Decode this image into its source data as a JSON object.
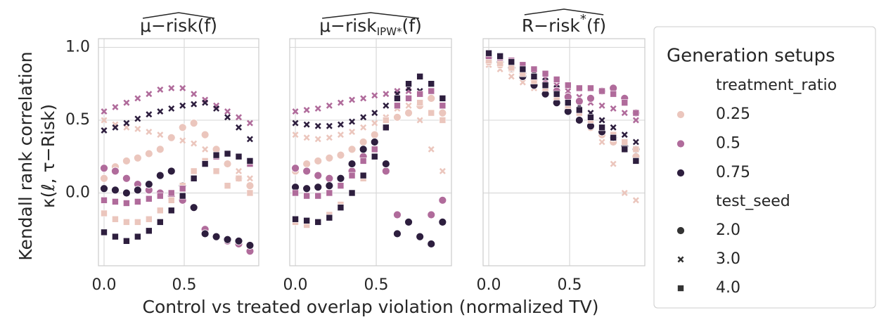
{
  "chart_data": [
    {
      "type": "scatter",
      "title": [
        {
          "text": "μ−risk"
        },
        {
          "text": "(f)"
        }
      ],
      "xlim": [
        -0.035,
        0.965
      ],
      "ylim": [
        -0.5,
        1.06
      ],
      "xticks": [
        {
          "value": 0,
          "label": "0.0"
        },
        {
          "value": 0.5,
          "label": "0.5"
        }
      ],
      "yticks": [
        {
          "value": 0,
          "label": "0.0"
        },
        {
          "value": 0.5,
          "label": "0.5"
        },
        {
          "value": 1,
          "label": "1.0"
        }
      ],
      "show_ytick_labels": true,
      "grid": true,
      "x": [
        0,
        0.07,
        0.14,
        0.21,
        0.28,
        0.35,
        0.42,
        0.49,
        0.56,
        0.63,
        0.7,
        0.77,
        0.84,
        0.91
      ],
      "series": [
        {
          "hue": 0,
          "style": 1,
          "values": [
            0.5,
            0.47,
            0.45,
            0.44,
            0.42,
            0.4,
            0.38,
            0.36,
            0.34,
            0.3,
            0.25,
            0.2,
            0.15,
            0.1
          ]
        },
        {
          "hue": 1,
          "style": 1,
          "values": [
            0.56,
            0.59,
            0.62,
            0.65,
            0.68,
            0.71,
            0.72,
            0.72,
            0.68,
            0.64,
            0.6,
            0.56,
            0.52,
            0.48
          ]
        },
        {
          "hue": 2,
          "style": 1,
          "values": [
            0.43,
            0.45,
            0.48,
            0.51,
            0.54,
            0.56,
            0.58,
            0.6,
            0.61,
            0.62,
            0.58,
            0.52,
            0.45,
            0.37
          ]
        },
        {
          "hue": 0,
          "style": 0,
          "values": [
            0.1,
            0.18,
            0.22,
            0.24,
            0.27,
            0.3,
            0.38,
            0.45,
            0.48,
            0.4,
            0.3,
            0.2,
            0.1,
            0.05
          ]
        },
        {
          "hue": 1,
          "style": 0,
          "values": [
            0.17,
            0.15,
            0.1,
            0.06,
            0.02,
            0.0,
            -0.02,
            -0.05,
            -0.1,
            -0.25,
            -0.3,
            -0.33,
            -0.35,
            -0.4
          ]
        },
        {
          "hue": 2,
          "style": 0,
          "values": [
            0.03,
            0.02,
            0.0,
            0.02,
            0.06,
            0.12,
            0.15,
            0.05,
            -0.1,
            -0.28,
            -0.3,
            -0.32,
            -0.33,
            -0.36
          ]
        },
        {
          "hue": 0,
          "style": 2,
          "values": [
            -0.14,
            -0.18,
            -0.2,
            -0.2,
            -0.18,
            -0.12,
            -0.05,
            0.05,
            0.15,
            0.22,
            0.15,
            0.05,
            0.1,
            0.0
          ]
        },
        {
          "hue": 1,
          "style": 2,
          "values": [
            -0.05,
            -0.06,
            -0.07,
            -0.06,
            -0.04,
            -0.02,
            0.0,
            0.03,
            0.1,
            0.2,
            0.25,
            0.27,
            0.25,
            0.2
          ]
        },
        {
          "hue": 2,
          "style": 2,
          "values": [
            -0.27,
            -0.3,
            -0.33,
            -0.3,
            -0.26,
            -0.2,
            -0.12,
            -0.02,
            0.1,
            0.2,
            0.26,
            0.27,
            0.25,
            0.22
          ]
        }
      ]
    },
    {
      "type": "scatter",
      "title": [
        {
          "text": "μ−risk"
        },
        {
          "text": "IPW*",
          "shift": "sub"
        },
        {
          "text": "(f)"
        }
      ],
      "xlim": [
        -0.035,
        0.965
      ],
      "ylim": [
        -0.5,
        1.06
      ],
      "xticks": [
        {
          "value": 0,
          "label": "0.0"
        },
        {
          "value": 0.5,
          "label": "0.5"
        }
      ],
      "yticks": [
        {
          "value": 0,
          "label": "0.0"
        },
        {
          "value": 0.5,
          "label": "0.5"
        },
        {
          "value": 1,
          "label": "1.0"
        }
      ],
      "show_ytick_labels": false,
      "grid": true,
      "x": [
        0,
        0.07,
        0.14,
        0.21,
        0.28,
        0.35,
        0.42,
        0.49,
        0.56,
        0.63,
        0.7,
        0.77,
        0.84,
        0.91
      ],
      "series": [
        {
          "hue": 0,
          "style": 1,
          "values": [
            0.4,
            0.38,
            0.37,
            0.38,
            0.4,
            0.42,
            0.45,
            0.48,
            0.52,
            0.58,
            0.6,
            0.5,
            0.3,
            0.15
          ]
        },
        {
          "hue": 1,
          "style": 1,
          "values": [
            0.56,
            0.57,
            0.58,
            0.6,
            0.62,
            0.64,
            0.65,
            0.67,
            0.68,
            0.7,
            0.7,
            0.68,
            0.65,
            0.6
          ]
        },
        {
          "hue": 2,
          "style": 1,
          "values": [
            0.48,
            0.47,
            0.46,
            0.46,
            0.47,
            0.49,
            0.52,
            0.55,
            0.6,
            0.68,
            0.72,
            0.7,
            0.65,
            0.6
          ]
        },
        {
          "hue": 0,
          "style": 0,
          "values": [
            0.15,
            0.2,
            0.22,
            0.24,
            0.26,
            0.3,
            0.35,
            0.4,
            0.45,
            0.52,
            0.55,
            0.6,
            0.65,
            0.55
          ]
        },
        {
          "hue": 1,
          "style": 0,
          "values": [
            0.17,
            0.15,
            0.12,
            0.1,
            0.1,
            0.15,
            0.25,
            0.35,
            0.15,
            -0.15,
            -0.2,
            -0.3,
            -0.15,
            -0.05
          ]
        },
        {
          "hue": 2,
          "style": 0,
          "values": [
            0.04,
            0.03,
            0.04,
            0.05,
            0.1,
            0.2,
            0.3,
            0.35,
            0.2,
            -0.28,
            -0.2,
            -0.3,
            -0.35,
            -0.2
          ]
        },
        {
          "hue": 0,
          "style": 2,
          "values": [
            -0.2,
            -0.22,
            -0.2,
            -0.15,
            -0.08,
            0.0,
            0.1,
            0.25,
            0.5,
            0.6,
            0.65,
            0.62,
            0.55,
            0.5
          ]
        },
        {
          "hue": 1,
          "style": 2,
          "values": [
            0.0,
            -0.02,
            -0.02,
            0.0,
            0.05,
            0.12,
            0.22,
            0.3,
            0.45,
            0.6,
            0.65,
            0.68,
            0.7,
            0.6
          ]
        },
        {
          "hue": 2,
          "style": 2,
          "values": [
            -0.18,
            -0.19,
            -0.2,
            -0.17,
            -0.1,
            0.0,
            0.12,
            0.25,
            0.45,
            0.65,
            0.75,
            0.8,
            0.75,
            0.65
          ]
        }
      ]
    },
    {
      "type": "scatter",
      "title": [
        {
          "text": "R−risk"
        },
        {
          "text": "*",
          "shift": "super"
        },
        {
          "text": "(f)"
        }
      ],
      "xlim": [
        -0.035,
        0.965
      ],
      "ylim": [
        -0.5,
        1.06
      ],
      "xticks": [
        {
          "value": 0,
          "label": "0.0"
        },
        {
          "value": 0.5,
          "label": "0.5"
        }
      ],
      "yticks": [
        {
          "value": 0,
          "label": "0.0"
        },
        {
          "value": 0.5,
          "label": "0.5"
        },
        {
          "value": 1,
          "label": "1.0"
        }
      ],
      "show_ytick_labels": false,
      "grid": true,
      "x": [
        0,
        0.07,
        0.14,
        0.21,
        0.28,
        0.35,
        0.42,
        0.49,
        0.56,
        0.63,
        0.7,
        0.77,
        0.84,
        0.91
      ],
      "series": [
        {
          "hue": 0,
          "style": 1,
          "values": [
            0.88,
            0.85,
            0.8,
            0.76,
            0.72,
            0.68,
            0.62,
            0.58,
            0.52,
            0.45,
            0.35,
            0.2,
            0.0,
            -0.05
          ]
        },
        {
          "hue": 1,
          "style": 1,
          "values": [
            0.93,
            0.92,
            0.9,
            0.87,
            0.83,
            0.79,
            0.74,
            0.7,
            0.66,
            0.62,
            0.6,
            0.58,
            0.55,
            0.5
          ]
        },
        {
          "hue": 2,
          "style": 1,
          "values": [
            0.95,
            0.93,
            0.9,
            0.86,
            0.82,
            0.77,
            0.72,
            0.66,
            0.6,
            0.55,
            0.5,
            0.45,
            0.4,
            0.35
          ]
        },
        {
          "hue": 0,
          "style": 0,
          "values": [
            0.9,
            0.88,
            0.85,
            0.8,
            0.75,
            0.7,
            0.64,
            0.58,
            0.5,
            0.45,
            0.4,
            0.35,
            0.3,
            0.25
          ]
        },
        {
          "hue": 1,
          "style": 0,
          "values": [
            0.92,
            0.9,
            0.86,
            0.82,
            0.78,
            0.75,
            0.7,
            0.66,
            0.63,
            0.65,
            0.7,
            0.72,
            0.65,
            0.55
          ]
        },
        {
          "hue": 2,
          "style": 0,
          "values": [
            0.93,
            0.9,
            0.86,
            0.8,
            0.74,
            0.68,
            0.62,
            0.56,
            0.5,
            0.46,
            0.42,
            0.38,
            0.32,
            0.3
          ]
        },
        {
          "hue": 0,
          "style": 2,
          "values": [
            0.91,
            0.89,
            0.86,
            0.82,
            0.77,
            0.72,
            0.66,
            0.6,
            0.55,
            0.5,
            0.45,
            0.4,
            0.35,
            0.3
          ]
        },
        {
          "hue": 1,
          "style": 2,
          "values": [
            0.94,
            0.93,
            0.91,
            0.88,
            0.85,
            0.82,
            0.78,
            0.74,
            0.72,
            0.72,
            0.7,
            0.68,
            0.62,
            0.55
          ]
        },
        {
          "hue": 2,
          "style": 2,
          "values": [
            0.96,
            0.94,
            0.9,
            0.85,
            0.8,
            0.74,
            0.68,
            0.62,
            0.57,
            0.52,
            0.45,
            0.38,
            0.3,
            0.22
          ]
        }
      ]
    }
  ],
  "ylabel": [
    "Kendall rank correlation",
    "κ(ℓ, τ−Risk)"
  ],
  "xlabel": "Control vs treated overlap violation (normalized TV)",
  "legend": {
    "title": "Generation setups",
    "hue_title": "treatment_ratio",
    "hue": [
      {
        "label": "0.25",
        "color": "#ebc6bd"
      },
      {
        "label": "0.5",
        "color": "#b06b9b"
      },
      {
        "label": "0.75",
        "color": "#2d1e3e"
      }
    ],
    "style_title": "test_seed",
    "style": [
      {
        "label": "2.0",
        "marker": "circle"
      },
      {
        "label": "3.0",
        "marker": "x"
      },
      {
        "label": "4.0",
        "marker": "square"
      }
    ]
  }
}
